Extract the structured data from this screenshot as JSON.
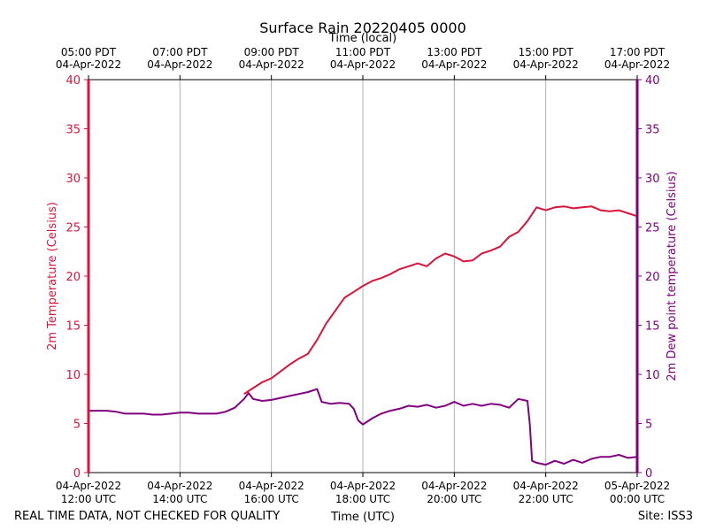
{
  "chart_data": {
    "type": "line",
    "title": "Surface Rain 20220405 0000",
    "top_xlabel": "Time (local)",
    "xlabel": "Time (UTC)",
    "ylabel_left": "2m Temperature (Celsius)",
    "ylabel_right": "2m Dew point temperature (Celsius)",
    "ylim": [
      0,
      40
    ],
    "y_ticks": [
      0,
      5,
      10,
      15,
      20,
      25,
      30,
      35,
      40
    ],
    "xlim_utc_hours": [
      12,
      24
    ],
    "grid": "vertical",
    "x_ticks_bottom": [
      {
        "h": 12,
        "line1": "04-Apr-2022",
        "line2": "12:00 UTC"
      },
      {
        "h": 14,
        "line1": "04-Apr-2022",
        "line2": "14:00 UTC"
      },
      {
        "h": 16,
        "line1": "04-Apr-2022",
        "line2": "16:00 UTC"
      },
      {
        "h": 18,
        "line1": "04-Apr-2022",
        "line2": "18:00 UTC"
      },
      {
        "h": 20,
        "line1": "04-Apr-2022",
        "line2": "20:00 UTC"
      },
      {
        "h": 22,
        "line1": "04-Apr-2022",
        "line2": "22:00 UTC"
      },
      {
        "h": 24,
        "line1": "05-Apr-2022",
        "line2": "00:00 UTC"
      }
    ],
    "x_ticks_top": [
      {
        "h": 12,
        "line1": "05:00 PDT",
        "line2": "04-Apr-2022"
      },
      {
        "h": 14,
        "line1": "07:00 PDT",
        "line2": "04-Apr-2022"
      },
      {
        "h": 16,
        "line1": "09:00 PDT",
        "line2": "04-Apr-2022"
      },
      {
        "h": 18,
        "line1": "11:00 PDT",
        "line2": "04-Apr-2022"
      },
      {
        "h": 20,
        "line1": "13:00 PDT",
        "line2": "04-Apr-2022"
      },
      {
        "h": 22,
        "line1": "15:00 PDT",
        "line2": "04-Apr-2022"
      },
      {
        "h": 24,
        "line1": "17:00 PDT",
        "line2": "04-Apr-2022"
      }
    ],
    "series": [
      {
        "name": "2m Temperature",
        "color": "#dc143c",
        "points": [
          [
            15.4,
            8.0
          ],
          [
            15.6,
            8.6
          ],
          [
            15.8,
            9.2
          ],
          [
            16.0,
            9.6
          ],
          [
            16.2,
            10.3
          ],
          [
            16.4,
            11.0
          ],
          [
            16.6,
            11.6
          ],
          [
            16.8,
            12.1
          ],
          [
            17.0,
            13.5
          ],
          [
            17.2,
            15.2
          ],
          [
            17.4,
            16.5
          ],
          [
            17.6,
            17.8
          ],
          [
            17.8,
            18.4
          ],
          [
            18.0,
            19.0
          ],
          [
            18.2,
            19.5
          ],
          [
            18.4,
            19.8
          ],
          [
            18.6,
            20.2
          ],
          [
            18.8,
            20.7
          ],
          [
            19.0,
            21.0
          ],
          [
            19.2,
            21.3
          ],
          [
            19.4,
            21.0
          ],
          [
            19.6,
            21.8
          ],
          [
            19.8,
            22.3
          ],
          [
            20.0,
            22.0
          ],
          [
            20.2,
            21.5
          ],
          [
            20.4,
            21.6
          ],
          [
            20.6,
            22.3
          ],
          [
            20.8,
            22.6
          ],
          [
            21.0,
            23.0
          ],
          [
            21.2,
            24.0
          ],
          [
            21.4,
            24.5
          ],
          [
            21.6,
            25.6
          ],
          [
            21.8,
            27.0
          ],
          [
            22.0,
            26.7
          ],
          [
            22.2,
            27.0
          ],
          [
            22.4,
            27.1
          ],
          [
            22.6,
            26.9
          ],
          [
            22.8,
            27.0
          ],
          [
            23.0,
            27.1
          ],
          [
            23.2,
            26.7
          ],
          [
            23.4,
            26.6
          ],
          [
            23.6,
            26.7
          ],
          [
            23.8,
            26.4
          ],
          [
            24.0,
            26.1
          ]
        ]
      },
      {
        "name": "2m Dew point temperature",
        "color": "#800080",
        "points": [
          [
            12.0,
            6.3
          ],
          [
            12.2,
            6.3
          ],
          [
            12.4,
            6.3
          ],
          [
            12.6,
            6.2
          ],
          [
            12.8,
            6.0
          ],
          [
            13.0,
            6.0
          ],
          [
            13.2,
            6.0
          ],
          [
            13.4,
            5.9
          ],
          [
            13.6,
            5.9
          ],
          [
            13.8,
            6.0
          ],
          [
            14.0,
            6.1
          ],
          [
            14.2,
            6.1
          ],
          [
            14.4,
            6.0
          ],
          [
            14.6,
            6.0
          ],
          [
            14.8,
            6.0
          ],
          [
            15.0,
            6.2
          ],
          [
            15.2,
            6.6
          ],
          [
            15.4,
            7.5
          ],
          [
            15.5,
            8.1
          ],
          [
            15.6,
            7.5
          ],
          [
            15.8,
            7.3
          ],
          [
            16.0,
            7.4
          ],
          [
            16.2,
            7.6
          ],
          [
            16.4,
            7.8
          ],
          [
            16.6,
            8.0
          ],
          [
            16.8,
            8.2
          ],
          [
            17.0,
            8.5
          ],
          [
            17.1,
            7.2
          ],
          [
            17.3,
            7.0
          ],
          [
            17.5,
            7.1
          ],
          [
            17.7,
            7.0
          ],
          [
            17.8,
            6.5
          ],
          [
            17.9,
            5.3
          ],
          [
            18.0,
            4.9
          ],
          [
            18.2,
            5.5
          ],
          [
            18.4,
            6.0
          ],
          [
            18.6,
            6.3
          ],
          [
            18.8,
            6.5
          ],
          [
            19.0,
            6.8
          ],
          [
            19.2,
            6.7
          ],
          [
            19.4,
            6.9
          ],
          [
            19.6,
            6.6
          ],
          [
            19.8,
            6.8
          ],
          [
            20.0,
            7.2
          ],
          [
            20.2,
            6.8
          ],
          [
            20.4,
            7.0
          ],
          [
            20.6,
            6.8
          ],
          [
            20.8,
            7.0
          ],
          [
            21.0,
            6.9
          ],
          [
            21.2,
            6.6
          ],
          [
            21.4,
            7.5
          ],
          [
            21.6,
            7.3
          ],
          [
            21.65,
            5.0
          ],
          [
            21.7,
            1.2
          ],
          [
            21.8,
            1.0
          ],
          [
            22.0,
            0.8
          ],
          [
            22.2,
            1.2
          ],
          [
            22.4,
            0.9
          ],
          [
            22.6,
            1.3
          ],
          [
            22.8,
            1.0
          ],
          [
            23.0,
            1.4
          ],
          [
            23.2,
            1.6
          ],
          [
            23.4,
            1.6
          ],
          [
            23.6,
            1.8
          ],
          [
            23.8,
            1.5
          ],
          [
            24.0,
            1.6
          ]
        ]
      }
    ]
  },
  "footer": {
    "left_note": "REAL TIME DATA, NOT CHECKED FOR QUALITY",
    "site": "Site: ISS3"
  }
}
